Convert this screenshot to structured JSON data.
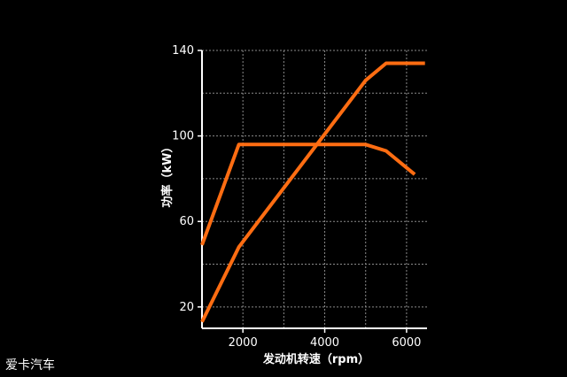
{
  "watermark": "爱卡汽车",
  "chart_data": {
    "type": "line",
    "xlabel": "发动机转速（rpm）",
    "ylabel": "功率（kW）",
    "xlim": [
      1000,
      6500
    ],
    "ylim": [
      10,
      140
    ],
    "x_ticks": [
      2000,
      4000,
      6000
    ],
    "y_ticks": [
      20,
      60,
      100,
      140
    ],
    "grid": true,
    "line_color": "#ff6d12",
    "series": [
      {
        "points": [
          [
            1000,
            49
          ],
          [
            1900,
            96
          ],
          [
            5000,
            96
          ],
          [
            5500,
            93
          ],
          [
            6200,
            82
          ]
        ]
      },
      {
        "points": [
          [
            1000,
            13
          ],
          [
            1900,
            48
          ],
          [
            5000,
            126
          ],
          [
            5500,
            134
          ],
          [
            6450,
            134
          ]
        ]
      }
    ]
  }
}
